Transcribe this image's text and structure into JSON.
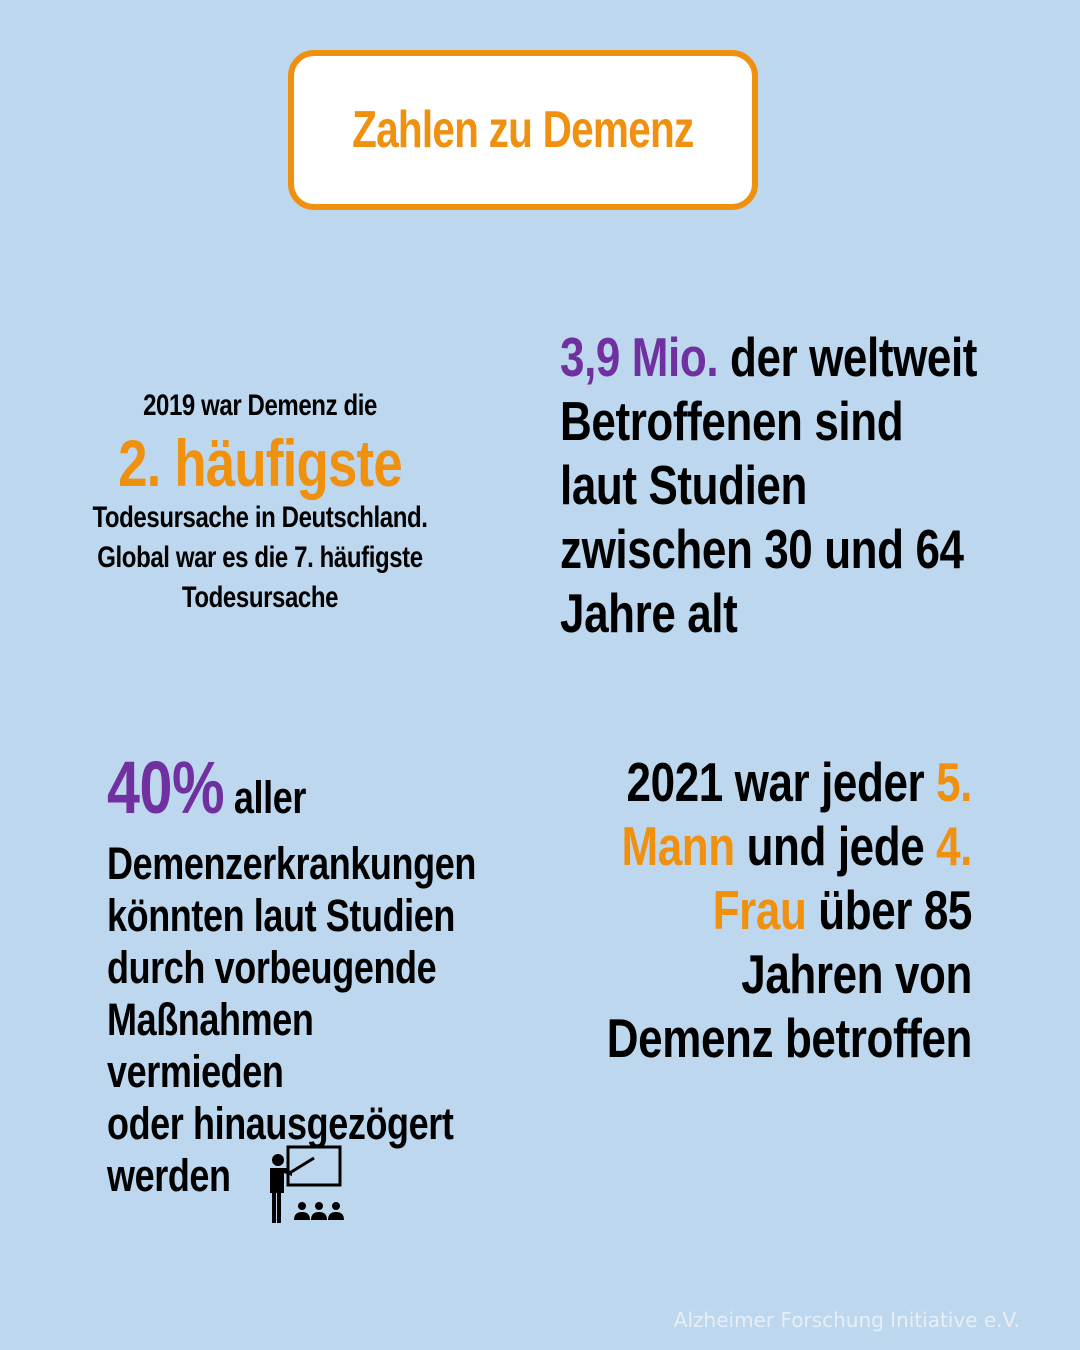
{
  "title": "Zahlen zu Demenz",
  "colors": {
    "background": "#bdd7ee",
    "orange": "#f0900f",
    "purple": "#7030a0",
    "text": "#000000"
  },
  "block1": {
    "line1": "2019 war Demenz die",
    "highlight": "2. häufigste",
    "line2": "Todesursache in Deutschland.",
    "line3": "Global war es die 7. häufigste",
    "line4": "Todesursache"
  },
  "block2": {
    "highlight": "3,9 Mio.",
    "line1_rest": " der weltweit",
    "line2": "Betroffenen sind",
    "line3": "laut Studien",
    "line4": "zwischen 30 und 64",
    "line5": "Jahre alt"
  },
  "block3": {
    "highlight": "40%",
    "line1_rest": " aller",
    "line2": "Demenzerkrankungen",
    "line3": "könnten laut Studien",
    "line4": "durch vorbeugende",
    "line5": "Maßnahmen",
    "line6": "vermieden",
    "line7": "oder hinausgezögert",
    "line8": "werden"
  },
  "block4": {
    "line1_start": "2021 war jeder ",
    "line1_hl": "5.",
    "line2_hl": "Mann",
    "line2_mid": " und jede ",
    "line2_hl2": "4.",
    "line3_hl": "Frau",
    "line3_rest": " über 85",
    "line4": "Jahren von",
    "line5": "Demenz betroffen"
  },
  "icons": {
    "teacher": "teacher-presentation-icon"
  },
  "footer": "Alzheimer Forschung Initiative e.V."
}
